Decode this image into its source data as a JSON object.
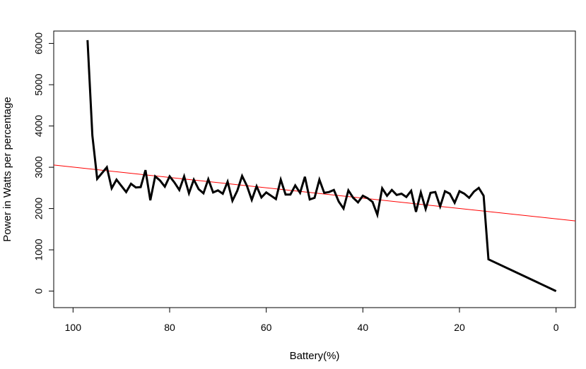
{
  "chart_data": {
    "type": "line",
    "xlabel": "Battery(%)",
    "ylabel": "Power in Watts per percentage",
    "x_reversed": true,
    "xlim": [
      104,
      -4
    ],
    "ylim": [
      -400,
      6300
    ],
    "x_ticks": [
      100,
      80,
      60,
      40,
      20,
      0
    ],
    "y_ticks": [
      0,
      1000,
      2000,
      3000,
      4000,
      5000,
      6000
    ],
    "grid": false,
    "series": [
      {
        "color": "#000000",
        "points": [
          [
            97,
            6080
          ],
          [
            96,
            3770
          ],
          [
            95,
            2720
          ],
          [
            94,
            2860
          ],
          [
            93,
            3000
          ],
          [
            92,
            2490
          ],
          [
            91,
            2700
          ],
          [
            90,
            2550
          ],
          [
            89,
            2400
          ],
          [
            88,
            2600
          ],
          [
            87,
            2510
          ],
          [
            86,
            2520
          ],
          [
            85,
            2930
          ],
          [
            84,
            2200
          ],
          [
            83,
            2780
          ],
          [
            82,
            2680
          ],
          [
            81,
            2530
          ],
          [
            80,
            2780
          ],
          [
            79,
            2630
          ],
          [
            78,
            2450
          ],
          [
            77,
            2780
          ],
          [
            76,
            2370
          ],
          [
            75,
            2700
          ],
          [
            74,
            2470
          ],
          [
            73,
            2370
          ],
          [
            72,
            2710
          ],
          [
            71,
            2390
          ],
          [
            70,
            2440
          ],
          [
            69,
            2360
          ],
          [
            68,
            2650
          ],
          [
            67,
            2190
          ],
          [
            66,
            2430
          ],
          [
            65,
            2790
          ],
          [
            64,
            2550
          ],
          [
            63,
            2210
          ],
          [
            62,
            2540
          ],
          [
            61,
            2270
          ],
          [
            60,
            2390
          ],
          [
            59,
            2310
          ],
          [
            58,
            2230
          ],
          [
            57,
            2700
          ],
          [
            56,
            2340
          ],
          [
            55,
            2340
          ],
          [
            54,
            2560
          ],
          [
            53,
            2380
          ],
          [
            52,
            2770
          ],
          [
            51,
            2220
          ],
          [
            50,
            2260
          ],
          [
            49,
            2700
          ],
          [
            48,
            2380
          ],
          [
            47,
            2400
          ],
          [
            46,
            2450
          ],
          [
            45,
            2170
          ],
          [
            44,
            2000
          ],
          [
            43,
            2440
          ],
          [
            42,
            2260
          ],
          [
            41,
            2150
          ],
          [
            40,
            2310
          ],
          [
            39,
            2250
          ],
          [
            38,
            2160
          ],
          [
            37,
            1850
          ],
          [
            36,
            2490
          ],
          [
            35,
            2310
          ],
          [
            34,
            2450
          ],
          [
            33,
            2330
          ],
          [
            32,
            2360
          ],
          [
            31,
            2280
          ],
          [
            30,
            2430
          ],
          [
            29,
            1920
          ],
          [
            28,
            2390
          ],
          [
            27,
            1990
          ],
          [
            26,
            2380
          ],
          [
            25,
            2400
          ],
          [
            24,
            2050
          ],
          [
            23,
            2420
          ],
          [
            22,
            2360
          ],
          [
            21,
            2140
          ],
          [
            20,
            2420
          ],
          [
            19,
            2360
          ],
          [
            18,
            2260
          ],
          [
            17,
            2410
          ],
          [
            16,
            2500
          ],
          [
            15,
            2310
          ],
          [
            14,
            770
          ],
          [
            0,
            0
          ]
        ]
      }
    ],
    "trend_line": {
      "color": "#ff0000",
      "points": [
        [
          104,
          3055
        ],
        [
          -4,
          1700
        ]
      ]
    }
  }
}
